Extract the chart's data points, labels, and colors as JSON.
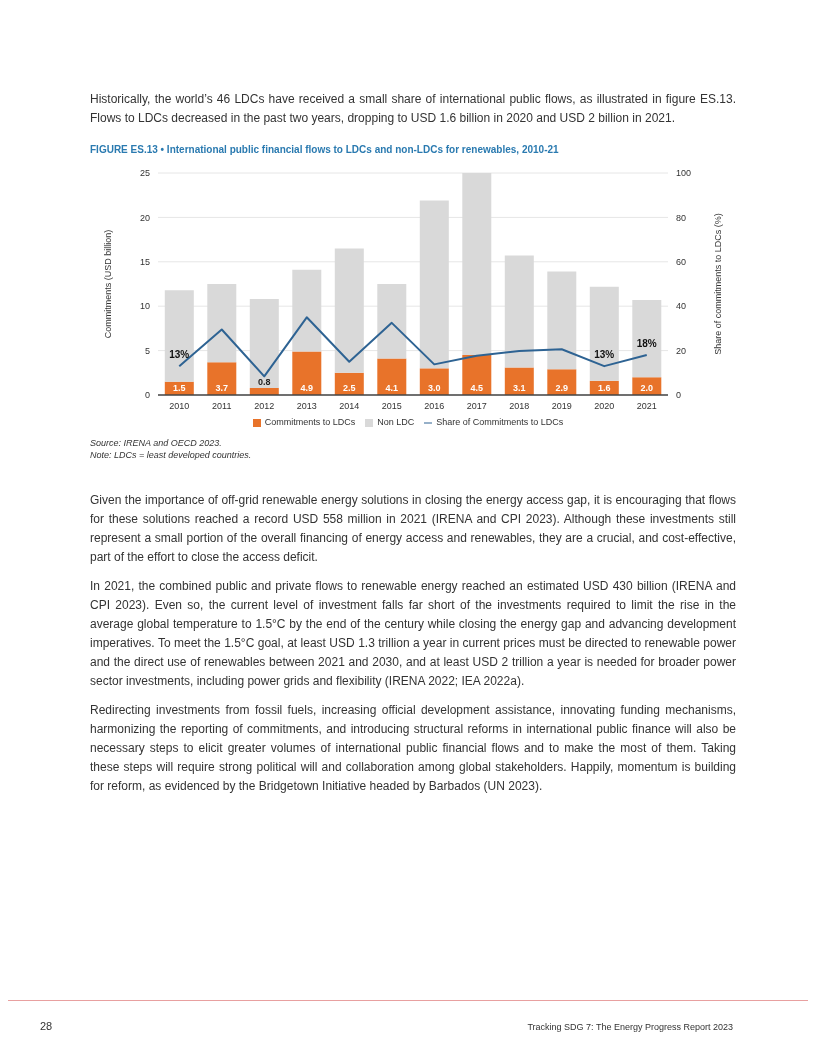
{
  "chart_data": {
    "type": "bar",
    "title": "FIGURE ES.13 • International public financial flows to LDCs and non-LDCs for renewables, 2010-21",
    "ylabel": "Commitments (USD billion)",
    "y2label": "Share of commitments to LDCs (%)",
    "categories": [
      "2010",
      "2011",
      "2012",
      "2013",
      "2014",
      "2015",
      "2016",
      "2017",
      "2018",
      "2019",
      "2020",
      "2021"
    ],
    "stacked": true,
    "series": [
      {
        "name": "Commitments to LDCs",
        "color": "#e8732a",
        "values": [
          1.5,
          3.7,
          0.8,
          4.9,
          2.5,
          4.1,
          3.0,
          4.5,
          3.1,
          2.9,
          1.6,
          2.0
        ],
        "value_labels": [
          "1.5",
          "3.7",
          "0.8",
          "4.9",
          "2.5",
          "4.1",
          "3.0",
          "4.5",
          "3.1",
          "2.9",
          "1.6",
          "2.0"
        ]
      },
      {
        "name": "Non LDC",
        "color": "#d9d9d9",
        "values": [
          10.3,
          8.8,
          10.0,
          9.2,
          14.0,
          8.4,
          18.9,
          20.5,
          12.6,
          11.0,
          10.6,
          8.7
        ]
      },
      {
        "name": "Share of Commitments to LDCs",
        "type": "line",
        "axis": "y2",
        "color": "#2e6393",
        "values": [
          13,
          29.5,
          8.4,
          35,
          15,
          32.5,
          13.8,
          17.7,
          19.8,
          20.6,
          13,
          18
        ],
        "value_labels": [
          "13%",
          null,
          null,
          null,
          null,
          null,
          null,
          null,
          null,
          null,
          "13%",
          "18%"
        ]
      }
    ],
    "ylim": [
      0,
      25
    ],
    "yticks": [
      0,
      5,
      10,
      15,
      20,
      25
    ],
    "y2lim": [
      0,
      100
    ],
    "y2ticks": [
      0,
      20,
      40,
      60,
      80,
      100
    ],
    "grid": "y",
    "legend": "bottom",
    "marker": "none",
    "line_style": "solid",
    "annotations": [
      "Historically, the world’s 46 LDCs have received a small share of international public flows, as illustrated in figure ES.13. Flows to LDCs decreased in the past two years, dropping to USD 1.6 billion in 2020 and USD 2 billion in 2021.",
      "Source: IRENA and OECD 2023.",
      "Note: LDCs = least developed countries.",
      "Given the importance of off-grid renewable energy solutions in closing the energy access gap, it is encouraging that flows for these solutions reached a record USD 558 million in 2021 (IRENA and CPI 2023). Although these investments still represent a small portion of the overall financing of energy access and renewables, they are a crucial, and cost-effective, part of the effort to close the access deficit.",
      "In 2021, the combined public and private flows to renewable energy reached an estimated USD 430 billion (IRENA and CPI 2023). Even so, the current level of investment falls far short of the investments required to limit the rise in the average global temperature to 1.5°C by the end of the century while closing the energy gap and advancing development imperatives. To meet the 1.5°C goal, at least USD 1.3 trillion a year in current prices must be directed to renewable power and the direct use of renewables between 2021 and 2030, and at least USD 2 trillion a year is needed for broader power sector investments, including power grids and flexibility (IRENA 2022; IEA 2022a).",
      "Redirecting investments from fossil fuels, increasing official development assistance, innovating funding mechanisms, harmonizing the reporting of commitments, and introducing structural reforms in international public finance will also be necessary steps to elicit greater volumes of international public financial flows and to make the most of them. Taking these steps will require strong political will and collaboration among global stakeholders. Happily, momentum is building for reform, as evidenced by the Bridgetown Initiative headed by Barbados (UN 2023).",
      "28",
      "Tracking SDG 7: The Energy Progress Report 2023"
    ]
  }
}
